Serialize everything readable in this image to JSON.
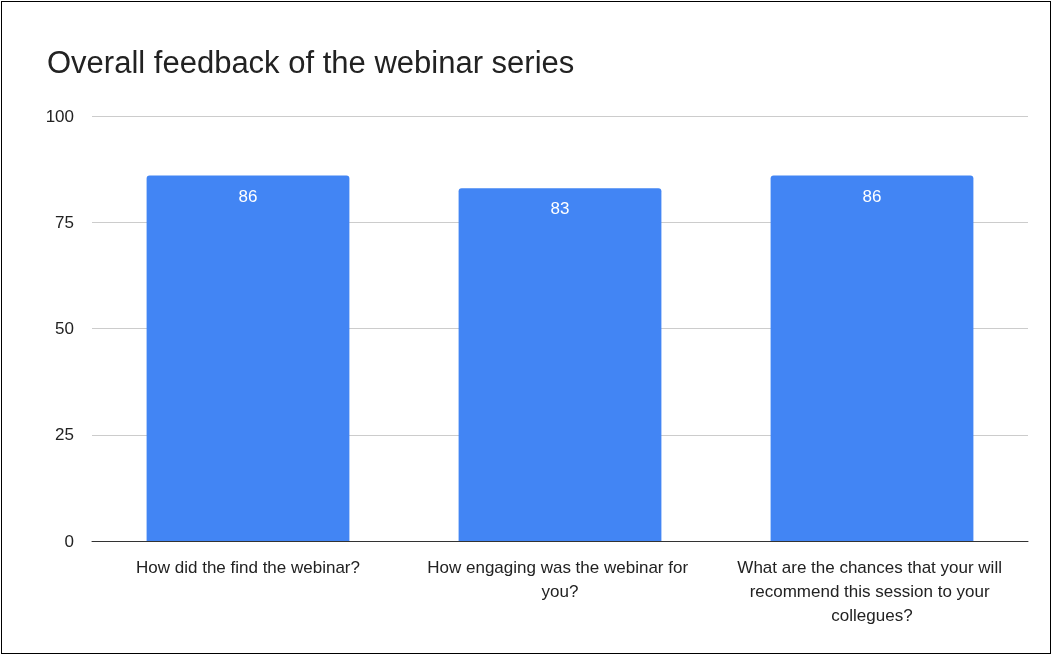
{
  "chart_data": {
    "type": "bar",
    "title": "Overall feedback of the webinar series",
    "categories": [
      "How did the find the webinar?",
      "How engaging was the webinar for you?",
      "What are the chances that your will recommend this session to your collegues?"
    ],
    "values": [
      86,
      83,
      86
    ],
    "color": "#4285f4",
    "ylim": [
      0,
      100
    ],
    "yticks": [
      0,
      25,
      50,
      75,
      100
    ],
    "grid": "y",
    "data_labels": true
  }
}
